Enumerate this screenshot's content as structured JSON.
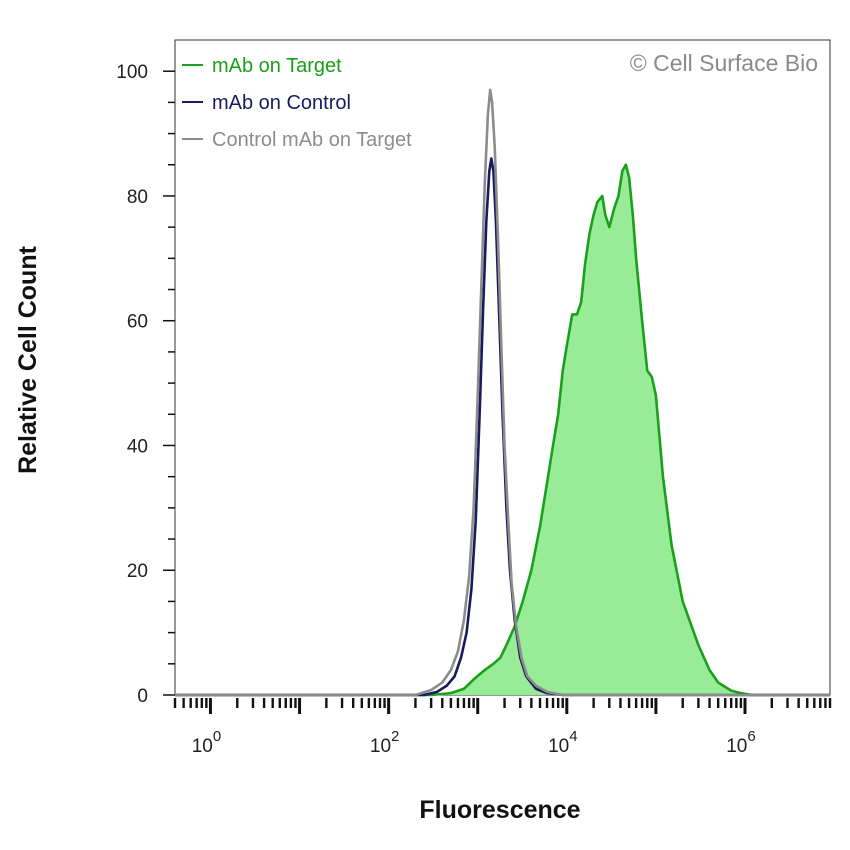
{
  "chart_data": {
    "type": "area",
    "xlabel": "Fluorescence",
    "ylabel": "Relative Cell Count",
    "x_scale": "log",
    "xlim": [
      0.4,
      9000000
    ],
    "ylim": [
      0,
      105
    ],
    "yticks": [
      0,
      20,
      40,
      60,
      80,
      100
    ],
    "ytick_labels": [
      "0",
      "20",
      "40",
      "60",
      "80",
      "100"
    ],
    "xticks": [
      1,
      100,
      10000,
      1000000
    ],
    "xtick_base": "10",
    "xtick_exponents": [
      "0",
      "2",
      "4",
      "6"
    ],
    "grid": false,
    "legend_position": "top-left",
    "annotation": "© Cell Surface Bio",
    "series": [
      {
        "name": "mAb on Target",
        "color": "#1aa01a",
        "fill": "#98ec98",
        "filled": true,
        "points": [
          [
            0.4,
            0
          ],
          [
            300,
            0
          ],
          [
            500,
            0.3
          ],
          [
            700,
            1
          ],
          [
            900,
            2.5
          ],
          [
            1200,
            4
          ],
          [
            1500,
            5
          ],
          [
            1800,
            6
          ],
          [
            2100,
            8
          ],
          [
            2600,
            11
          ],
          [
            3200,
            15
          ],
          [
            4000,
            20
          ],
          [
            5000,
            27
          ],
          [
            6000,
            34
          ],
          [
            7000,
            40
          ],
          [
            8000,
            45
          ],
          [
            9000,
            52
          ],
          [
            10000,
            56
          ],
          [
            11500,
            61
          ],
          [
            13000,
            61
          ],
          [
            14500,
            63
          ],
          [
            16000,
            69
          ],
          [
            18000,
            74
          ],
          [
            20000,
            77
          ],
          [
            22000,
            79
          ],
          [
            25000,
            80
          ],
          [
            27000,
            77
          ],
          [
            30000,
            75
          ],
          [
            34000,
            78
          ],
          [
            38000,
            80
          ],
          [
            42000,
            84
          ],
          [
            46000,
            85
          ],
          [
            50000,
            83
          ],
          [
            55000,
            77
          ],
          [
            60000,
            70
          ],
          [
            70000,
            60
          ],
          [
            80000,
            52
          ],
          [
            90000,
            51
          ],
          [
            100000,
            48
          ],
          [
            120000,
            35
          ],
          [
            150000,
            24
          ],
          [
            200000,
            15
          ],
          [
            300000,
            8
          ],
          [
            400000,
            4
          ],
          [
            500000,
            2
          ],
          [
            700000,
            0.7
          ],
          [
            900000,
            0.3
          ],
          [
            1200000,
            0
          ],
          [
            9000000,
            0
          ]
        ]
      },
      {
        "name": "mAb on Control",
        "color": "#1a1a5e",
        "filled": false,
        "points": [
          [
            0.4,
            0
          ],
          [
            250,
            0
          ],
          [
            350,
            0.5
          ],
          [
            450,
            1.5
          ],
          [
            550,
            3
          ],
          [
            650,
            6
          ],
          [
            750,
            10
          ],
          [
            850,
            17
          ],
          [
            950,
            28
          ],
          [
            1050,
            45
          ],
          [
            1150,
            62
          ],
          [
            1250,
            76
          ],
          [
            1350,
            84
          ],
          [
            1420,
            86
          ],
          [
            1500,
            84
          ],
          [
            1600,
            76
          ],
          [
            1750,
            60
          ],
          [
            1900,
            45
          ],
          [
            2100,
            30
          ],
          [
            2300,
            20
          ],
          [
            2600,
            12
          ],
          [
            3000,
            6
          ],
          [
            3500,
            3
          ],
          [
            4500,
            1
          ],
          [
            6000,
            0.3
          ],
          [
            9000,
            0
          ],
          [
            9000000,
            0
          ]
        ]
      },
      {
        "name": "Control mAb on Target",
        "color": "#8c8c8c",
        "filled": false,
        "points": [
          [
            0.4,
            0
          ],
          [
            200,
            0
          ],
          [
            300,
            0.8
          ],
          [
            400,
            2
          ],
          [
            500,
            4
          ],
          [
            600,
            7
          ],
          [
            700,
            12
          ],
          [
            800,
            19
          ],
          [
            900,
            30
          ],
          [
            1000,
            48
          ],
          [
            1100,
            66
          ],
          [
            1200,
            82
          ],
          [
            1300,
            93
          ],
          [
            1380,
            97
          ],
          [
            1450,
            95
          ],
          [
            1550,
            88
          ],
          [
            1700,
            72
          ],
          [
            1850,
            55
          ],
          [
            2000,
            40
          ],
          [
            2200,
            28
          ],
          [
            2400,
            18
          ],
          [
            2700,
            11
          ],
          [
            3100,
            6
          ],
          [
            3600,
            3
          ],
          [
            4500,
            1.5
          ],
          [
            6000,
            0.5
          ],
          [
            9000,
            0
          ],
          [
            9000000,
            0
          ]
        ]
      }
    ]
  }
}
